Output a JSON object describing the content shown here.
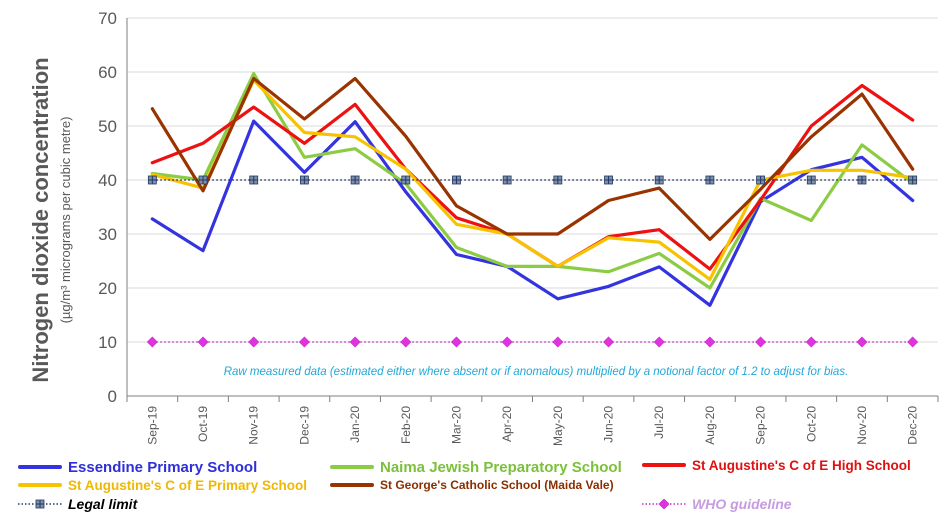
{
  "chart_data": {
    "type": "line",
    "ylabel_main": "Nitrogen dioxide concentration",
    "ylabel_sub": "(µg/m³ micrograms per cubic metre)",
    "ylim": [
      0,
      70
    ],
    "yticks": [
      0,
      10,
      20,
      30,
      40,
      50,
      60,
      70
    ],
    "grid": true,
    "note": "Raw measured data (estimated either where absent or if anomalous) multiplied by a notional factor of 1.2 to adjust for bias.",
    "categories": [
      "Sep-19",
      "Oct-19",
      "Nov-19",
      "Dec-19",
      "Jan-20",
      "Feb-20",
      "Mar-20",
      "Apr-20",
      "May-20",
      "Jun-20",
      "Jul-20",
      "Aug-20",
      "Sep-20",
      "Oct-20",
      "Nov-20",
      "Dec-20"
    ],
    "series": [
      {
        "name": "Essendine Primary School",
        "color": "#3333e0",
        "style": "solid",
        "values": [
          32.8,
          26.9,
          50.9,
          41.4,
          50.8,
          37.8,
          26.2,
          24.0,
          18.0,
          20.3,
          23.9,
          16.8,
          36.0,
          41.9,
          44.2,
          36.2
        ]
      },
      {
        "name": "Naima Jewish Preparatory School",
        "color": "#8ccc44",
        "style": "solid",
        "values": [
          41.2,
          40.0,
          59.7,
          44.2,
          45.8,
          39.3,
          27.5,
          24.0,
          24.0,
          23.0,
          26.4,
          20.0,
          36.6,
          32.5,
          46.5,
          39.4
        ]
      },
      {
        "name": "St Augustine's C of E High School",
        "color": "#ee1111",
        "style": "solid",
        "values": [
          43.2,
          46.8,
          53.5,
          46.8,
          54.0,
          42.0,
          33.0,
          30.0,
          24.0,
          29.5,
          30.8,
          23.5,
          36.3,
          50.0,
          57.5,
          51.1
        ]
      },
      {
        "name": "St Augustine's C of E Primary School",
        "color": "#f7c300",
        "style": "solid",
        "values": [
          41.0,
          38.5,
          58.5,
          48.8,
          48.0,
          42.0,
          31.8,
          30.0,
          24.0,
          29.3,
          28.5,
          21.6,
          40.0,
          41.8,
          41.8,
          40.4
        ]
      },
      {
        "name": "St George's Catholic School (Maida Vale)",
        "color": "#993300",
        "style": "solid",
        "values": [
          53.2,
          38.0,
          58.8,
          51.3,
          58.8,
          48.1,
          35.2,
          30.0,
          30.0,
          36.2,
          38.5,
          29.0,
          38.3,
          48.0,
          55.9,
          42.0
        ]
      },
      {
        "name": "Legal limit",
        "color": "#203864",
        "style": "dotted",
        "values": [
          40,
          40,
          40,
          40,
          40,
          40,
          40,
          40,
          40,
          40,
          40,
          40,
          40,
          40,
          40,
          40
        ]
      },
      {
        "name": "WHO guideline",
        "color": "#cc33cc",
        "style": "dotted",
        "values": [
          10,
          10,
          10,
          10,
          10,
          10,
          10,
          10,
          10,
          10,
          10,
          10,
          10,
          10,
          10,
          10
        ]
      }
    ]
  },
  "legend": [
    {
      "label": "Essendine Primary School",
      "color": "#3333e0",
      "text_color": "#2f2fd8"
    },
    {
      "label": "Naima Jewish Preparatory School",
      "color": "#8ccc44",
      "text_color": "#7cc03a"
    },
    {
      "label": "St Augustine's C of E High School",
      "color": "#ee1111",
      "text_color": "#e01010"
    },
    {
      "label": "St Augustine's C of E Primary School",
      "color": "#f7c300",
      "text_color": "#f0b800"
    },
    {
      "label": "St George's Catholic School (Maida Vale)",
      "color": "#993300",
      "text_color": "#8a2e00"
    },
    {
      "label": "Legal limit",
      "color": "#203864",
      "text_color": "#000000"
    },
    {
      "label": "WHO guideline",
      "color": "#cc33cc",
      "text_color": "#c79bdf"
    }
  ]
}
